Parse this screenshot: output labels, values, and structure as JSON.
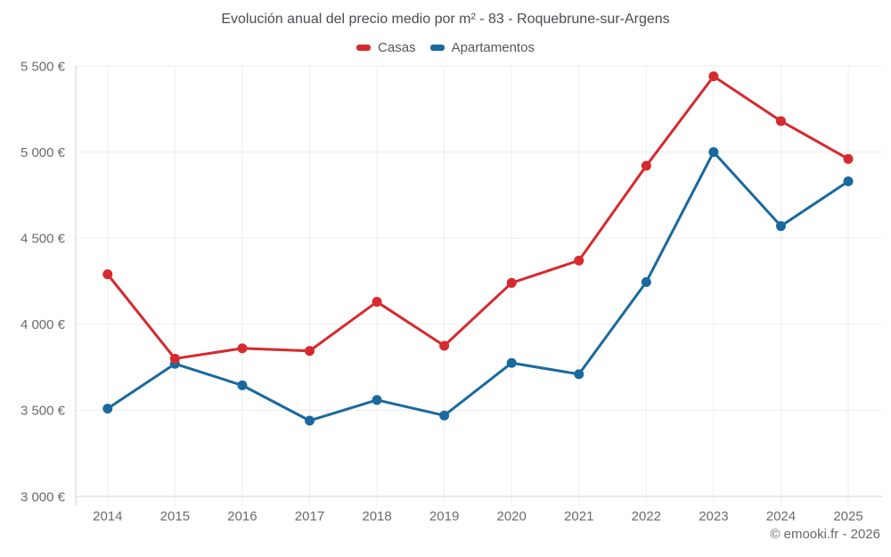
{
  "footer": "© emooki.fr - 2026",
  "colors": {
    "casas": "#d62a2e",
    "apartamentos": "#1a699e",
    "grid": "#ededed",
    "axis": "#d0d0d0",
    "tick_text": "#6b6b6b",
    "title_text": "#4a4d51",
    "legend_text": "#54575b",
    "footer_text": "#66696d",
    "background": "#ffffff"
  },
  "chart_data": {
    "type": "line",
    "title": "Evolución anual del precio medio por m² - 83 - Roquebrune-sur-Argens",
    "x": [
      2014,
      2015,
      2016,
      2017,
      2018,
      2019,
      2020,
      2021,
      2022,
      2023,
      2024,
      2025
    ],
    "series": [
      {
        "name": "Casas",
        "color": "#d62a2e",
        "values": [
          4290,
          3800,
          3860,
          3845,
          4130,
          3875,
          4240,
          4370,
          4920,
          5440,
          5180,
          4960
        ]
      },
      {
        "name": "Apartamentos",
        "color": "#1a699e",
        "values": [
          3510,
          3770,
          3645,
          3440,
          3560,
          3470,
          3775,
          3710,
          4245,
          5000,
          4570,
          4830
        ]
      }
    ],
    "xlabel": "",
    "ylabel": "",
    "ylim": [
      3000,
      5500
    ],
    "yticks": [
      {
        "value": 3000,
        "label": "3 000 €"
      },
      {
        "value": 3500,
        "label": "3 500 €"
      },
      {
        "value": 4000,
        "label": "4 000 €"
      },
      {
        "value": 4500,
        "label": "4 500 €"
      },
      {
        "value": 5000,
        "label": "5 000 €"
      },
      {
        "value": 5500,
        "label": "5 500 €"
      }
    ],
    "grid": true,
    "legend_position": "top"
  }
}
